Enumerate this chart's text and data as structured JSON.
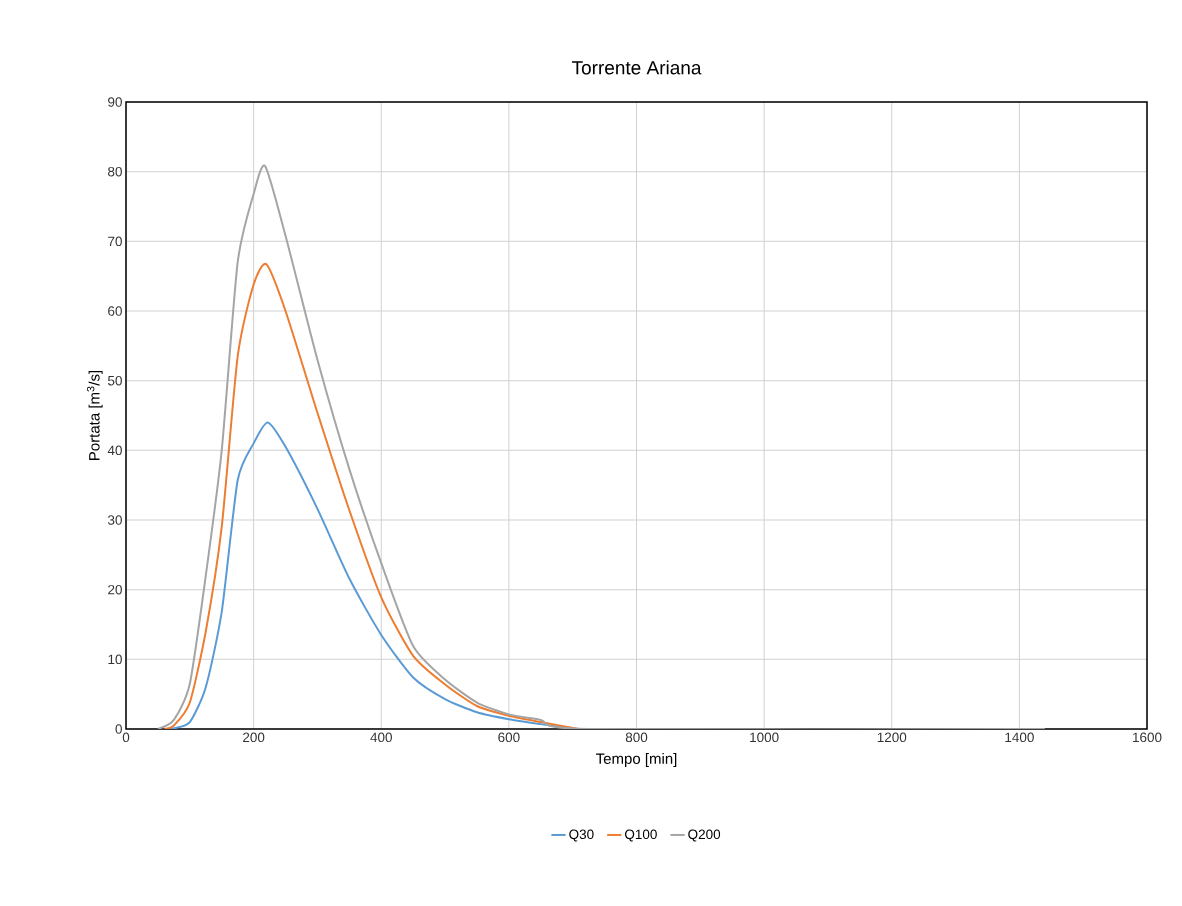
{
  "chart_data": {
    "type": "line",
    "title": "Torrente Ariana",
    "xlabel": "Tempo [min]",
    "ylabel": "Portata [m$^{3}$/s]",
    "xlim": [
      0,
      1600
    ],
    "xticks": [
      0,
      200,
      400,
      600,
      800,
      1000,
      1200,
      1400,
      1600
    ],
    "ylim": [
      0,
      90
    ],
    "yticks": [
      0,
      10,
      20,
      30,
      40,
      50,
      60,
      70,
      80,
      90
    ],
    "grid": true,
    "legend": "bottom",
    "marker": "none",
    "line_style": "solid",
    "series": [
      {
        "name": "Q30",
        "color": "#5b9bd5",
        "x": [
          70,
          75,
          100,
          125,
          150,
          175,
          200,
          222,
          250,
          300,
          350,
          400,
          450,
          500,
          550,
          600,
          650,
          705
        ],
        "values": [
          0,
          0.1,
          1,
          6,
          16.8,
          35.7,
          41,
          44,
          40.5,
          31.6,
          21.6,
          13.5,
          7.4,
          4.3,
          2.4,
          1.4,
          0.7,
          0
        ]
      },
      {
        "name": "Q100",
        "color": "#ed7d31",
        "x": [
          60,
          75,
          100,
          125,
          150,
          175,
          200,
          220,
          250,
          300,
          350,
          400,
          450,
          500,
          550,
          600,
          650,
          710
        ],
        "values": [
          0,
          0.5,
          3.8,
          14,
          29,
          53.5,
          63.8,
          66.7,
          60,
          45.4,
          31.4,
          18.9,
          10.5,
          6.4,
          3.3,
          1.9,
          1.0,
          0
        ]
      },
      {
        "name": "Q200",
        "color": "#a5a5a5",
        "x": [
          50,
          75,
          100,
          125,
          150,
          175,
          200,
          218,
          250,
          300,
          350,
          400,
          450,
          500,
          550,
          600,
          650,
          725,
          1440
        ],
        "values": [
          0,
          1.3,
          6.5,
          22,
          40,
          67,
          76.8,
          80.8,
          70.8,
          53,
          37.3,
          23.8,
          11.9,
          7.1,
          3.8,
          2.1,
          1.3,
          0,
          0
        ]
      }
    ]
  }
}
